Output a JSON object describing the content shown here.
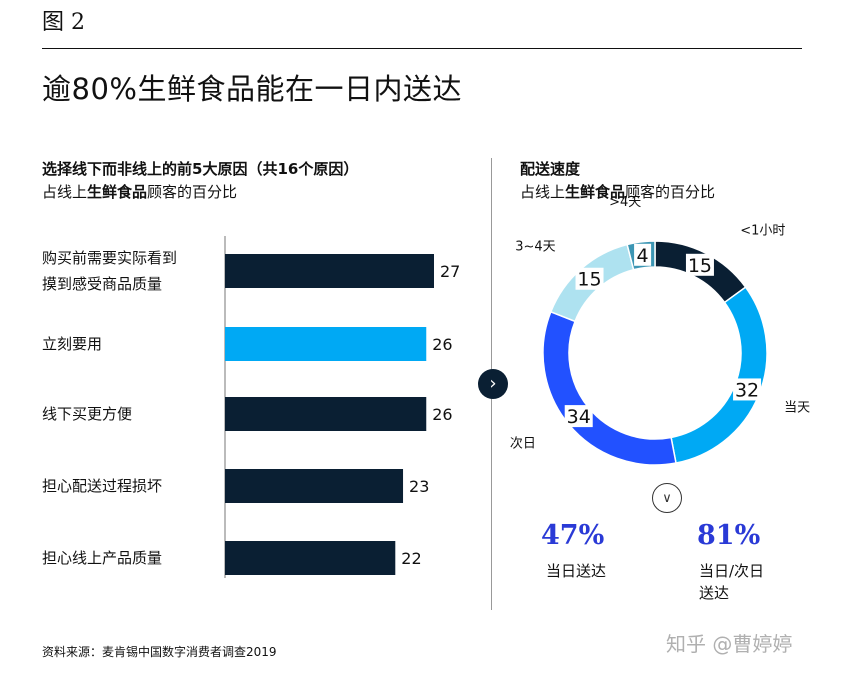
{
  "figure_label": "图 2",
  "title": "逾80%生鲜食品能在一日内送达",
  "left_panel": {
    "title": "选择线下而非线上的前5大原因（共16个原因）",
    "subtitle_pre": "占线上",
    "subtitle_bold": "生鲜食品",
    "subtitle_post": "顾客的百分比"
  },
  "right_panel": {
    "title": "配送速度",
    "subtitle_pre": "占线上",
    "subtitle_bold": "生鲜食品",
    "subtitle_post": "顾客的百分比"
  },
  "chart_data": [
    {
      "type": "bar",
      "orientation": "horizontal",
      "title": "选择线下而非线上的前5大原因（共16个原因）",
      "categories": [
        "购买前需要实际看到摸到感受商品质量",
        "立刻要用",
        "线下买更方便",
        "担心配送过程损坏",
        "担心线上产品质量"
      ],
      "category_lines": [
        [
          "购买前需要实际看到",
          "摸到感受商品质量"
        ],
        [
          "立刻要用"
        ],
        [
          "线下买更方便"
        ],
        [
          "担心配送过程损坏"
        ],
        [
          "担心线上产品质量"
        ]
      ],
      "values": [
        27,
        26,
        26,
        23,
        22
      ],
      "colors": [
        "#0a1f33",
        "#00a9f4",
        "#0a1f33",
        "#0a1f33",
        "#0a1f33"
      ],
      "xlim": [
        0,
        27
      ]
    },
    {
      "type": "pie",
      "style": "donut",
      "title": "配送速度",
      "slices": [
        {
          "label": "<1小时",
          "value": 15,
          "color": "#0a1f33"
        },
        {
          "label": "当天",
          "value": 32,
          "color": "#00a9f4"
        },
        {
          "label": "次日",
          "value": 34,
          "color": "#2251ff"
        },
        {
          "label": "3~4天",
          "value": 15,
          "color": "#aee2f0"
        },
        {
          "label": ">4天",
          "value": 4,
          "color": "#3c96b4"
        }
      ]
    }
  ],
  "stats": [
    {
      "value": "47%",
      "label_lines": [
        "当日送达"
      ]
    },
    {
      "value": "81%",
      "label_lines": [
        "当日/次日",
        "送达"
      ]
    }
  ],
  "buttons": {
    "next_icon": "chevron-right-icon",
    "next_glyph": "›",
    "down_icon": "chevron-down-icon",
    "down_glyph": "∨"
  },
  "source": "资料来源：麦肯锡中国数字消费者调查2019",
  "watermark": "知乎 @曹婷婷"
}
